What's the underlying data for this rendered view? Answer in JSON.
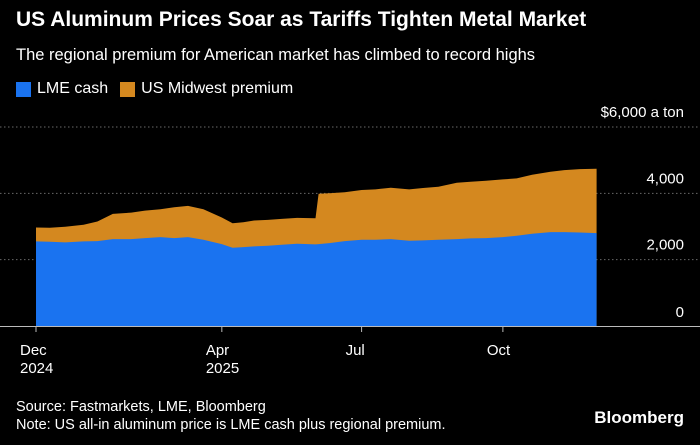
{
  "header": {
    "title": "US Aluminum Prices Soar as Tariffs Tighten Metal Market",
    "subtitle": "The regional premium for American market has climbed to record highs"
  },
  "footer": {
    "source": "Source: Fastmarkets, LME, Bloomberg",
    "note": "Note: US all-in aluminum price is LME cash plus regional premium.",
    "brand": "Bloomberg"
  },
  "colors": {
    "lme": "#1a73f0",
    "premium": "#d4881f",
    "grid": "#6a6a6a",
    "background": "#000000"
  },
  "chart_data": {
    "type": "area",
    "stacked": true,
    "series": [
      {
        "name": "LME cash",
        "color": "#1a73f0"
      },
      {
        "name": "US Midwest premium",
        "color": "#d4881f"
      }
    ],
    "y_unit_label": "$6,000 a ton",
    "ylim": [
      0,
      6000
    ],
    "y_ticks": [
      {
        "value": 0,
        "label": "0"
      },
      {
        "value": 2000,
        "label": "2,000"
      },
      {
        "value": 4000,
        "label": "4,000"
      }
    ],
    "x_ticks": [
      {
        "date": "2024-12-01",
        "label": "Dec",
        "sublabel": "2024"
      },
      {
        "date": "2025-04-01",
        "label": "Apr",
        "sublabel": "2025"
      },
      {
        "date": "2025-07-01",
        "label": "Jul",
        "sublabel": ""
      },
      {
        "date": "2025-10-01",
        "label": "Oct",
        "sublabel": ""
      }
    ],
    "xlim": [
      "2024-12-01",
      "2026-01-10"
    ],
    "points": [
      {
        "date": "2024-12-01",
        "lme": 2550,
        "total": 2970
      },
      {
        "date": "2024-12-10",
        "lme": 2540,
        "total": 2960
      },
      {
        "date": "2024-12-20",
        "lme": 2520,
        "total": 2990
      },
      {
        "date": "2025-01-01",
        "lme": 2550,
        "total": 3050
      },
      {
        "date": "2025-01-10",
        "lme": 2560,
        "total": 3150
      },
      {
        "date": "2025-01-20",
        "lme": 2620,
        "total": 3380
      },
      {
        "date": "2025-02-01",
        "lme": 2620,
        "total": 3420
      },
      {
        "date": "2025-02-10",
        "lme": 2650,
        "total": 3480
      },
      {
        "date": "2025-02-20",
        "lme": 2680,
        "total": 3520
      },
      {
        "date": "2025-03-01",
        "lme": 2650,
        "total": 3580
      },
      {
        "date": "2025-03-10",
        "lme": 2680,
        "total": 3620
      },
      {
        "date": "2025-03-20",
        "lme": 2600,
        "total": 3520
      },
      {
        "date": "2025-04-01",
        "lme": 2470,
        "total": 3270
      },
      {
        "date": "2025-04-08",
        "lme": 2360,
        "total": 3100
      },
      {
        "date": "2025-04-15",
        "lme": 2380,
        "total": 3130
      },
      {
        "date": "2025-04-22",
        "lme": 2400,
        "total": 3180
      },
      {
        "date": "2025-05-01",
        "lme": 2420,
        "total": 3200
      },
      {
        "date": "2025-05-10",
        "lme": 2450,
        "total": 3230
      },
      {
        "date": "2025-05-20",
        "lme": 2480,
        "total": 3260
      },
      {
        "date": "2025-06-01",
        "lme": 2460,
        "total": 3250
      },
      {
        "date": "2025-06-03",
        "lme": 2470,
        "total": 3990
      },
      {
        "date": "2025-06-10",
        "lme": 2500,
        "total": 4000
      },
      {
        "date": "2025-06-20",
        "lme": 2560,
        "total": 4030
      },
      {
        "date": "2025-07-01",
        "lme": 2600,
        "total": 4100
      },
      {
        "date": "2025-07-10",
        "lme": 2600,
        "total": 4120
      },
      {
        "date": "2025-07-20",
        "lme": 2620,
        "total": 4170
      },
      {
        "date": "2025-08-01",
        "lme": 2570,
        "total": 4120
      },
      {
        "date": "2025-08-10",
        "lme": 2580,
        "total": 4160
      },
      {
        "date": "2025-08-20",
        "lme": 2600,
        "total": 4200
      },
      {
        "date": "2025-09-01",
        "lme": 2620,
        "total": 4320
      },
      {
        "date": "2025-09-10",
        "lme": 2640,
        "total": 4350
      },
      {
        "date": "2025-09-20",
        "lme": 2650,
        "total": 4380
      },
      {
        "date": "2025-10-01",
        "lme": 2680,
        "total": 4420
      },
      {
        "date": "2025-10-10",
        "lme": 2720,
        "total": 4450
      },
      {
        "date": "2025-10-20",
        "lme": 2780,
        "total": 4560
      },
      {
        "date": "2025-11-01",
        "lme": 2830,
        "total": 4650
      },
      {
        "date": "2025-11-10",
        "lme": 2830,
        "total": 4700
      },
      {
        "date": "2025-11-20",
        "lme": 2820,
        "total": 4730
      },
      {
        "date": "2025-12-01",
        "lme": 2800,
        "total": 4740
      }
    ]
  }
}
